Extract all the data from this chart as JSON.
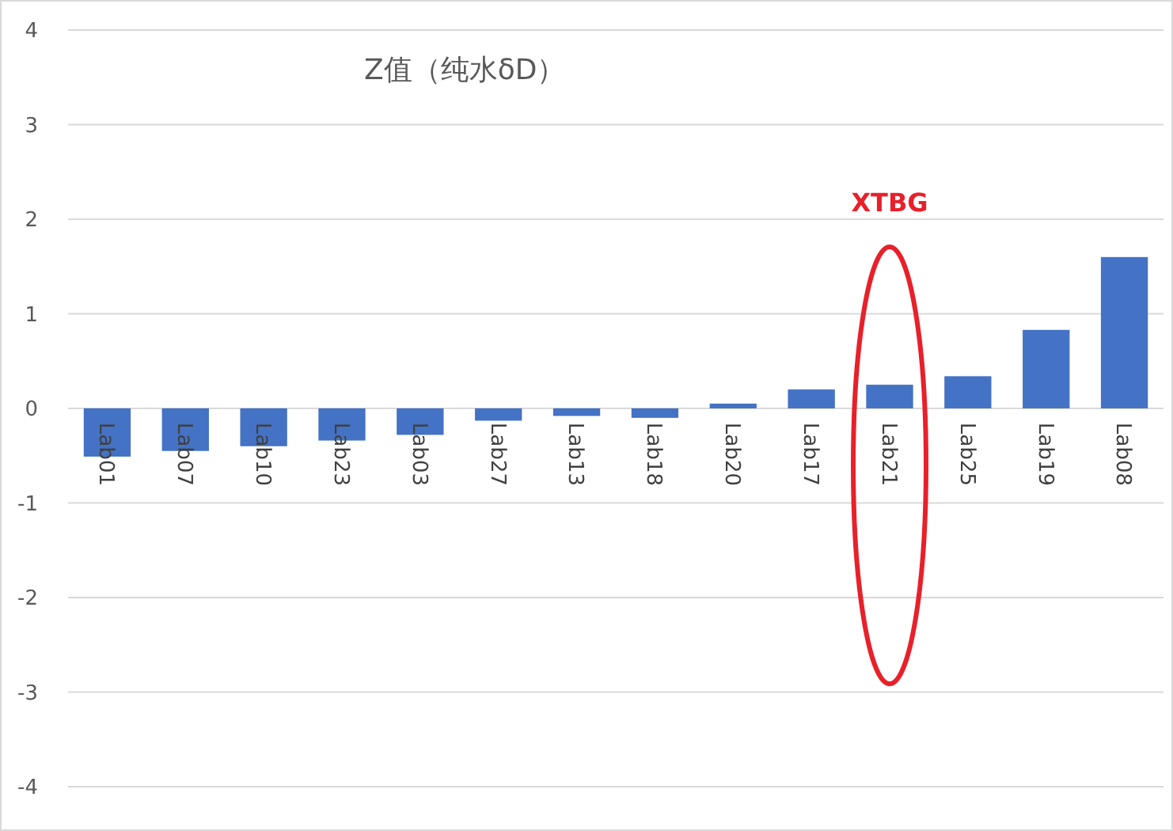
{
  "chart_data": {
    "type": "bar",
    "title": "Z值（纯水δD）",
    "categories": [
      "Lab01",
      "Lab07",
      "Lab10",
      "Lab23",
      "Lab03",
      "Lab27",
      "Lab13",
      "Lab18",
      "Lab20",
      "Lab17",
      "Lab21",
      "Lab25",
      "Lab19",
      "Lab08"
    ],
    "values": [
      -0.51,
      -0.45,
      -0.4,
      -0.34,
      -0.28,
      -0.13,
      -0.08,
      -0.1,
      0.05,
      0.2,
      0.25,
      0.34,
      0.83,
      1.6
    ],
    "color": "#4472c4",
    "ylim": [
      -4,
      4
    ],
    "yticks": [
      -4,
      -3,
      -2,
      -1,
      0,
      1,
      2,
      3,
      4
    ],
    "grid": "y",
    "annotations": [
      "XTBG"
    ]
  }
}
